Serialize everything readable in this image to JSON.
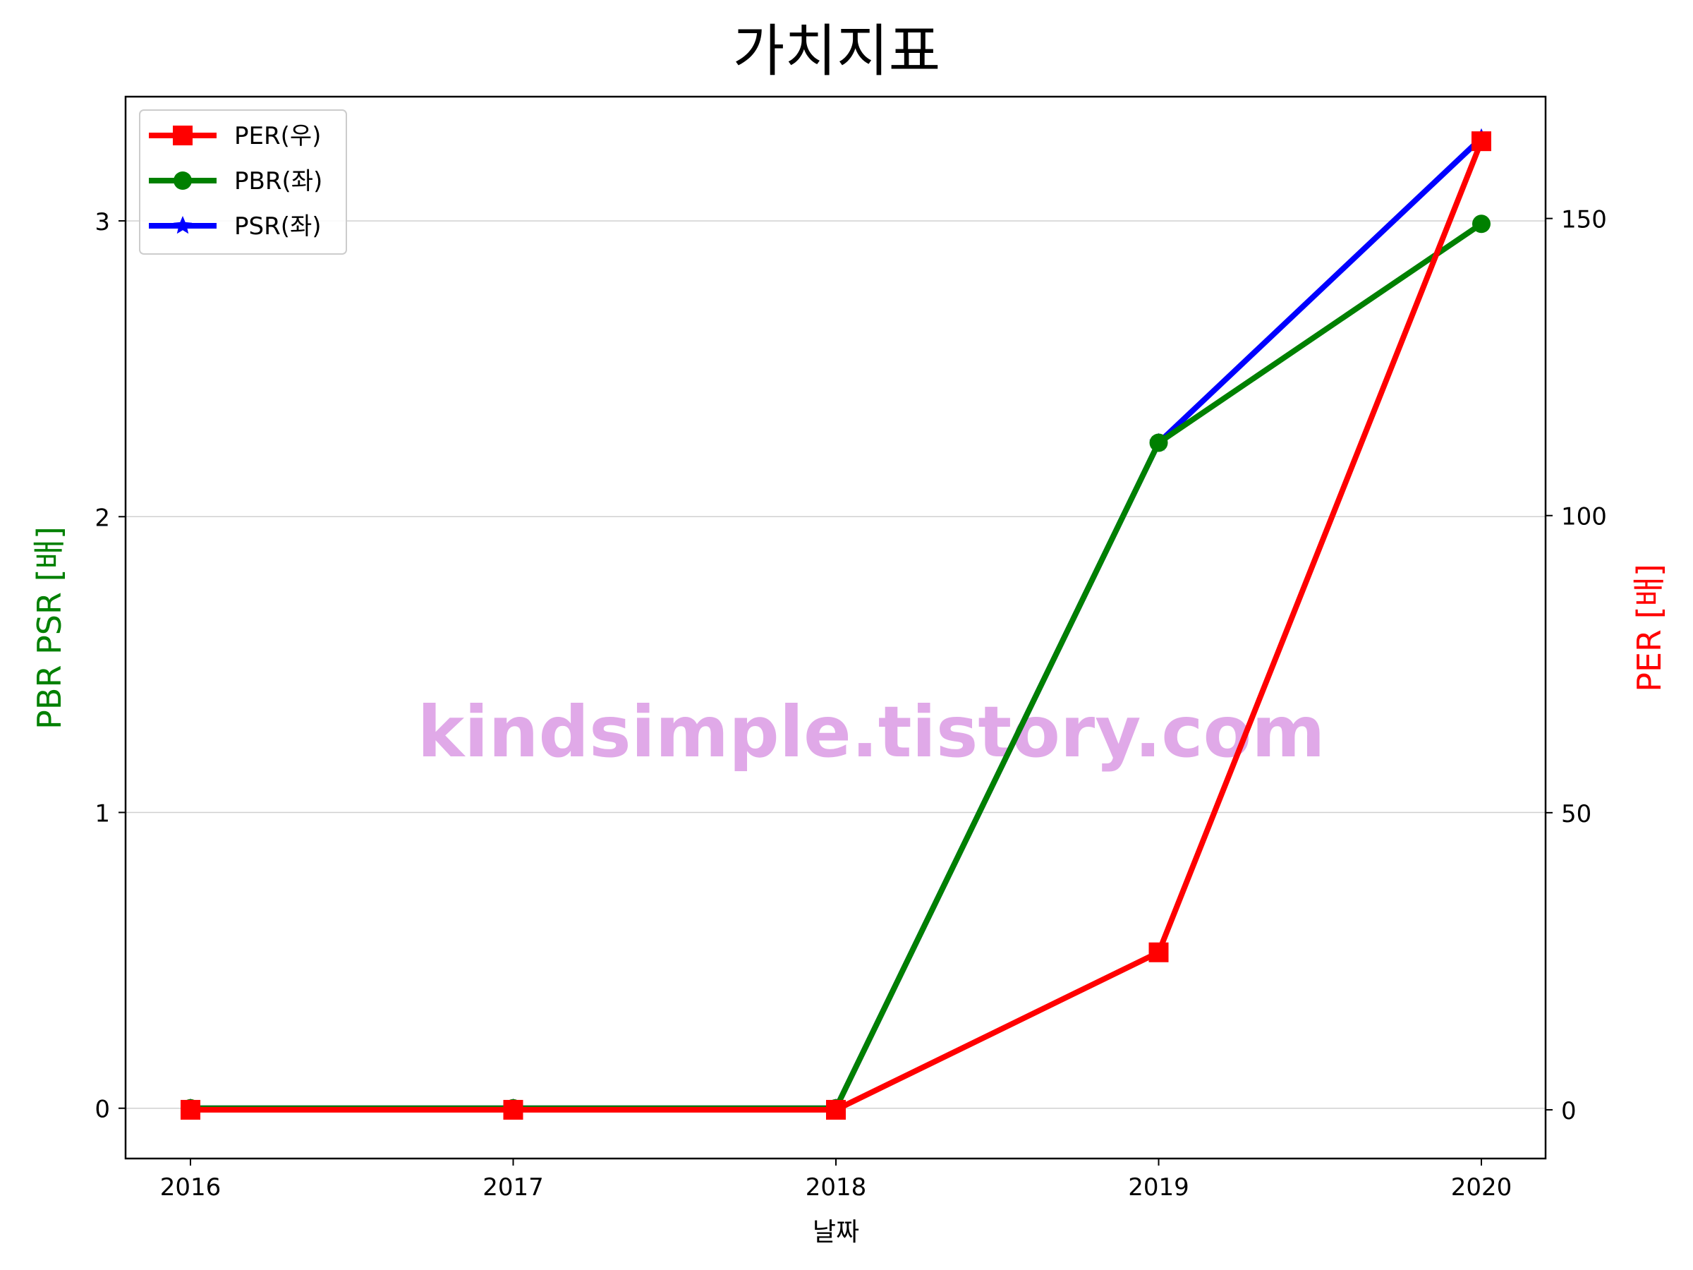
{
  "chart_data": {
    "type": "line",
    "title": "가치지표",
    "xlabel": "날짜",
    "ylabel_left": "PBR PSR [배]",
    "ylabel_right": "PER [배]",
    "categories": [
      "2016",
      "2017",
      "2018",
      "2019",
      "2020"
    ],
    "ylim_left": [
      -0.17,
      3.42
    ],
    "ylim_right": [
      -8.2,
      170.5
    ],
    "yticks_left": [
      0,
      1,
      2,
      3
    ],
    "yticks_right": [
      0,
      50,
      100,
      150
    ],
    "grid": "horizontal, left axis",
    "legend_position": "top-left",
    "series": [
      {
        "name": "PER(우)",
        "axis": "right",
        "color": "#ff0000",
        "marker": "square",
        "values": [
          0,
          0,
          0,
          26.5,
          163
        ]
      },
      {
        "name": "PBR(좌)",
        "axis": "left",
        "color": "#008000",
        "marker": "circle",
        "values": [
          0,
          0,
          0,
          2.25,
          2.99
        ]
      },
      {
        "name": "PSR(좌)",
        "axis": "left",
        "color": "#0000ff",
        "marker": "star",
        "values": [
          0,
          0,
          0,
          2.25,
          3.28
        ]
      }
    ],
    "watermark": "kindsimple.tistory.com"
  }
}
